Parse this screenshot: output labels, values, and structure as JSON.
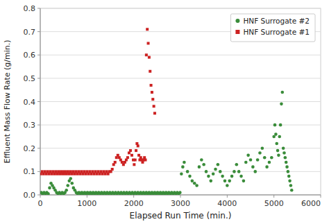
{
  "chart_data": {
    "type": "scatter",
    "xlabel": "Elapsed Run Time (min.)",
    "ylabel": "Effluent Mass Flow Rate (g/min.)",
    "xlim": [
      0,
      6000
    ],
    "ylim": [
      0,
      0.8
    ],
    "xticks": [
      0,
      1000,
      2000,
      3000,
      4000,
      5000,
      6000
    ],
    "yticks": [
      {
        "value": 0,
        "label": "0.0"
      },
      0.1,
      0.2,
      0.3,
      0.4,
      0.5,
      0.6,
      0.7,
      0.8
    ],
    "grid": "y",
    "legend": "upper right",
    "series": [
      {
        "name": "HNF Surrogate #2",
        "color": "#3a8c3a",
        "marker": "circle",
        "x": [
          20,
          50,
          80,
          110,
          140,
          170,
          200,
          230,
          260,
          290,
          320,
          350,
          380,
          410,
          440,
          470,
          500,
          530,
          560,
          590,
          620,
          650,
          680,
          710,
          740,
          770,
          800,
          830,
          860,
          890,
          920,
          950,
          980,
          1010,
          1040,
          1070,
          1100,
          1130,
          1160,
          1190,
          1220,
          1250,
          1280,
          1310,
          1340,
          1370,
          1400,
          1430,
          1460,
          1490,
          1520,
          1550,
          1580,
          1610,
          1640,
          1670,
          1700,
          1730,
          1760,
          1790,
          1820,
          1850,
          1880,
          1910,
          1940,
          1970,
          2000,
          2030,
          2060,
          2090,
          2120,
          2150,
          2180,
          2210,
          2240,
          2270,
          2300,
          2330,
          2360,
          2390,
          2420,
          2450,
          2480,
          2510,
          2540,
          2570,
          2600,
          2630,
          2660,
          2690,
          2720,
          2750,
          2780,
          2810,
          2840,
          2870,
          2900,
          2930,
          2960,
          2990,
          3020,
          3050,
          3080,
          3150,
          3200,
          3250,
          3300,
          3350,
          3400,
          3450,
          3500,
          3550,
          3600,
          3650,
          3700,
          3750,
          3800,
          3850,
          3900,
          3950,
          4000,
          4050,
          4100,
          4150,
          4200,
          4250,
          4300,
          4350,
          4400,
          4450,
          4500,
          4550,
          4600,
          4650,
          4700,
          4750,
          4800,
          4850,
          4900,
          4950,
          5000,
          5020,
          5040,
          5060,
          5080,
          5100,
          5120,
          5140,
          5160,
          5180,
          5200,
          5220,
          5240,
          5260,
          5280,
          5300,
          5320,
          5340,
          5360,
          5380
        ],
        "values": [
          0.01,
          0.005,
          0.01,
          0.005,
          0.01,
          0.005,
          0.03,
          0.05,
          0.04,
          0.03,
          0.02,
          0.01,
          0.005,
          0.01,
          0.005,
          0.01,
          0.005,
          0.01,
          0.02,
          0.04,
          0.06,
          0.07,
          0.05,
          0.03,
          0.02,
          0.01,
          0.005,
          0.01,
          0.005,
          0.01,
          0.005,
          0.01,
          0.005,
          0.01,
          0.005,
          0.01,
          0.005,
          0.01,
          0.005,
          0.01,
          0.005,
          0.01,
          0.005,
          0.01,
          0.005,
          0.01,
          0.005,
          0.01,
          0.005,
          0.01,
          0.005,
          0.01,
          0.005,
          0.01,
          0.005,
          0.01,
          0.005,
          0.01,
          0.005,
          0.01,
          0.005,
          0.01,
          0.005,
          0.01,
          0.005,
          0.01,
          0.005,
          0.01,
          0.005,
          0.01,
          0.005,
          0.01,
          0.005,
          0.01,
          0.005,
          0.01,
          0.005,
          0.01,
          0.005,
          0.01,
          0.005,
          0.01,
          0.005,
          0.01,
          0.005,
          0.01,
          0.005,
          0.01,
          0.005,
          0.01,
          0.005,
          0.01,
          0.005,
          0.01,
          0.005,
          0.01,
          0.005,
          0.01,
          0.005,
          0.01,
          0.09,
          0.12,
          0.14,
          0.1,
          0.08,
          0.06,
          0.05,
          0.04,
          0.12,
          0.15,
          0.13,
          0.1,
          0.08,
          0.06,
          0.09,
          0.11,
          0.13,
          0.1,
          0.08,
          0.06,
          0.04,
          0.06,
          0.08,
          0.1,
          0.13,
          0.1,
          0.08,
          0.06,
          0.14,
          0.17,
          0.15,
          0.12,
          0.1,
          0.15,
          0.18,
          0.2,
          0.16,
          0.12,
          0.14,
          0.16,
          0.25,
          0.3,
          0.26,
          0.22,
          0.19,
          0.17,
          0.25,
          0.3,
          0.39,
          0.44,
          0.2,
          0.18,
          0.16,
          0.14,
          0.12,
          0.1,
          0.08,
          0.06,
          0.04,
          0.02
        ]
      },
      {
        "name": "HNF Surrogate #1",
        "color": "#cc2222",
        "marker": "square",
        "x": [
          10,
          40,
          70,
          100,
          130,
          160,
          190,
          220,
          250,
          280,
          310,
          340,
          370,
          400,
          430,
          460,
          490,
          520,
          550,
          580,
          610,
          640,
          670,
          700,
          730,
          760,
          790,
          820,
          850,
          880,
          910,
          940,
          970,
          1000,
          1030,
          1060,
          1090,
          1120,
          1150,
          1180,
          1210,
          1240,
          1270,
          1300,
          1330,
          1360,
          1390,
          1420,
          1450,
          1480,
          1510,
          1540,
          1570,
          1600,
          1630,
          1660,
          1690,
          1720,
          1750,
          1780,
          1810,
          1840,
          1870,
          1900,
          1930,
          1960,
          1990,
          2010,
          2030,
          2050,
          2070,
          2090,
          2110,
          2130,
          2150,
          2170,
          2190,
          2210,
          2230,
          2250,
          2270,
          2290,
          2310,
          2330,
          2350,
          2370,
          2390,
          2410,
          2430,
          2450
        ],
        "values": [
          0.09,
          0.1,
          0.09,
          0.1,
          0.09,
          0.1,
          0.09,
          0.1,
          0.09,
          0.1,
          0.09,
          0.1,
          0.09,
          0.1,
          0.09,
          0.1,
          0.09,
          0.1,
          0.09,
          0.1,
          0.09,
          0.1,
          0.09,
          0.1,
          0.09,
          0.1,
          0.09,
          0.1,
          0.09,
          0.1,
          0.09,
          0.1,
          0.09,
          0.1,
          0.09,
          0.1,
          0.09,
          0.1,
          0.09,
          0.1,
          0.09,
          0.1,
          0.09,
          0.1,
          0.09,
          0.1,
          0.09,
          0.1,
          0.09,
          0.1,
          0.1,
          0.11,
          0.13,
          0.14,
          0.16,
          0.17,
          0.16,
          0.15,
          0.14,
          0.13,
          0.14,
          0.15,
          0.16,
          0.18,
          0.19,
          0.17,
          0.15,
          0.13,
          0.15,
          0.19,
          0.22,
          0.21,
          0.17,
          0.15,
          0.16,
          0.15,
          0.14,
          0.15,
          0.16,
          0.15,
          0.6,
          0.71,
          0.65,
          0.59,
          0.53,
          0.47,
          0.44,
          0.41,
          0.38,
          0.35
        ]
      }
    ]
  }
}
